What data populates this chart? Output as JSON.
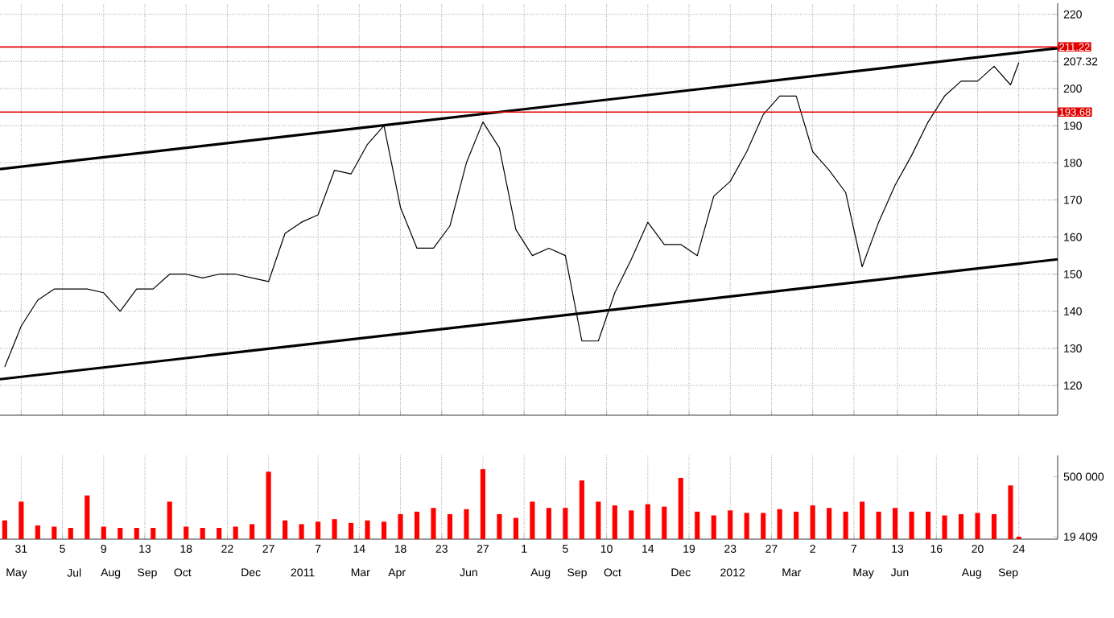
{
  "chart_data": [
    {
      "type": "line",
      "x": [
        "2010-05-17",
        "2010-05-31",
        "2010-06-14",
        "2010-06-28",
        "2010-07-12",
        "2010-07-26",
        "2010-08-09",
        "2010-08-23",
        "2010-09-06",
        "2010-09-20",
        "2010-10-04",
        "2010-10-18",
        "2010-11-01",
        "2010-11-15",
        "2010-11-29",
        "2010-12-13",
        "2010-12-27",
        "2011-01-10",
        "2011-01-24",
        "2011-02-07",
        "2011-02-21",
        "2011-03-07",
        "2011-03-21",
        "2011-04-04",
        "2011-04-18",
        "2011-05-02",
        "2011-05-16",
        "2011-05-30",
        "2011-06-13",
        "2011-06-27",
        "2011-07-11",
        "2011-07-25",
        "2011-08-08",
        "2011-08-22",
        "2011-09-05",
        "2011-09-19",
        "2011-10-03",
        "2011-10-17",
        "2011-10-31",
        "2011-11-14",
        "2011-11-28",
        "2011-12-12",
        "2011-12-26",
        "2012-01-09",
        "2012-01-23",
        "2012-02-06",
        "2012-02-20",
        "2012-03-05",
        "2012-03-19",
        "2012-04-02",
        "2012-04-16",
        "2012-04-30",
        "2012-05-14",
        "2012-05-28",
        "2012-06-11",
        "2012-06-25",
        "2012-07-09",
        "2012-07-23",
        "2012-08-06",
        "2012-08-20",
        "2012-09-03",
        "2012-09-17",
        "2012-09-24"
      ],
      "series": [
        {
          "color": "#000000",
          "values": [
            125,
            136,
            143,
            146,
            146,
            146,
            145,
            140,
            146,
            146,
            150,
            150,
            149,
            150,
            150,
            149,
            148,
            161,
            164,
            166,
            178,
            177,
            185,
            190,
            168,
            157,
            157,
            163,
            180,
            191,
            184,
            162,
            155,
            157,
            155,
            132,
            132,
            145,
            154,
            164,
            158,
            158,
            155,
            171,
            175,
            183,
            193,
            198,
            198,
            183,
            178,
            172,
            152,
            164,
            174,
            182,
            191,
            198,
            202,
            202,
            206,
            201,
            207
          ]
        },
        {
          "color": "#000000",
          "x": [
            "2010-05-13",
            "2012-10-27"
          ],
          "values": [
            178.3,
            210.9
          ]
        },
        {
          "color": "#000000",
          "x": [
            "2010-05-13",
            "2012-10-27"
          ],
          "values": [
            121.7,
            154
          ]
        }
      ],
      "xlim": [
        "2010-05-13",
        "2012-10-27"
      ],
      "xticks": [
        {
          "value": "2010-05-31",
          "label": null
        },
        {
          "value": "2010-07-05",
          "label": null
        },
        {
          "value": "2010-08-09",
          "label": null
        },
        {
          "value": "2010-09-13",
          "label": null
        },
        {
          "value": "2010-10-18",
          "label": null
        },
        {
          "value": "2010-11-22",
          "label": null
        },
        {
          "value": "2010-12-27",
          "label": null
        },
        {
          "value": "2011-02-07",
          "label": null
        },
        {
          "value": "2011-03-14",
          "label": null
        },
        {
          "value": "2011-04-18",
          "label": null
        },
        {
          "value": "2011-05-23",
          "label": null
        },
        {
          "value": "2011-06-27",
          "label": null
        },
        {
          "value": "2011-08-01",
          "label": null
        },
        {
          "value": "2011-09-05",
          "label": null
        },
        {
          "value": "2011-10-10",
          "label": null
        },
        {
          "value": "2011-11-14",
          "label": null
        },
        {
          "value": "2011-12-19",
          "label": null
        },
        {
          "value": "2012-01-23",
          "label": null
        },
        {
          "value": "2012-02-27",
          "label": null
        },
        {
          "value": "2012-04-02",
          "label": null
        },
        {
          "value": "2012-05-07",
          "label": null
        },
        {
          "value": "2012-06-13",
          "label": null
        },
        {
          "value": "2012-07-16",
          "label": null
        },
        {
          "value": "2012-08-20",
          "label": null
        },
        {
          "value": "2012-09-24",
          "label": null
        }
      ],
      "ylim": [
        112,
        223
      ],
      "yticks": [
        120,
        130,
        140,
        150,
        160,
        170,
        180,
        190,
        200,
        {
          "value": 207.32,
          "label": "207.32"
        },
        220
      ],
      "grid": true,
      "tick_labels": "y",
      "ref_lines": [
        {
          "axis": "y",
          "value": 211.22,
          "label": "211.22",
          "color": "#e00000"
        },
        {
          "axis": "y",
          "value": 193.68,
          "label": "193.68",
          "color": "#e00000"
        }
      ]
    },
    {
      "type": "bar",
      "x": [
        "2010-05-17",
        "2010-05-31",
        "2010-06-14",
        "2010-06-28",
        "2010-07-12",
        "2010-07-26",
        "2010-08-09",
        "2010-08-23",
        "2010-09-06",
        "2010-09-20",
        "2010-10-04",
        "2010-10-18",
        "2010-11-01",
        "2010-11-15",
        "2010-11-29",
        "2010-12-13",
        "2010-12-27",
        "2011-01-10",
        "2011-01-24",
        "2011-02-07",
        "2011-02-21",
        "2011-03-07",
        "2011-03-21",
        "2011-04-04",
        "2011-04-18",
        "2011-05-02",
        "2011-05-16",
        "2011-05-30",
        "2011-06-13",
        "2011-06-27",
        "2011-07-11",
        "2011-07-25",
        "2011-08-08",
        "2011-08-22",
        "2011-09-05",
        "2011-09-19",
        "2011-10-03",
        "2011-10-17",
        "2011-10-31",
        "2011-11-14",
        "2011-11-28",
        "2011-12-12",
        "2011-12-26",
        "2012-01-09",
        "2012-01-23",
        "2012-02-06",
        "2012-02-20",
        "2012-03-05",
        "2012-03-19",
        "2012-04-02",
        "2012-04-16",
        "2012-04-30",
        "2012-05-14",
        "2012-05-28",
        "2012-06-11",
        "2012-06-25",
        "2012-07-09",
        "2012-07-23",
        "2012-08-06",
        "2012-08-20",
        "2012-09-03",
        "2012-09-17",
        "2012-09-24"
      ],
      "values": [
        150000,
        300000,
        110000,
        100000,
        90000,
        350000,
        100000,
        90000,
        90000,
        90000,
        300000,
        100000,
        90000,
        90000,
        100000,
        120000,
        540000,
        150000,
        120000,
        140000,
        160000,
        130000,
        150000,
        140000,
        200000,
        220000,
        250000,
        200000,
        240000,
        560000,
        200000,
        170000,
        300000,
        250000,
        250000,
        470000,
        300000,
        270000,
        230000,
        280000,
        260000,
        490000,
        220000,
        190000,
        230000,
        210000,
        210000,
        240000,
        220000,
        270000,
        250000,
        220000,
        300000,
        220000,
        250000,
        220000,
        220000,
        190000,
        200000,
        210000,
        200000,
        430000,
        19409
      ],
      "color": "#ff0000",
      "xlim": [
        "2010-05-13",
        "2012-10-27"
      ],
      "xticks": [
        {
          "value": "2010-05-31",
          "label": "31"
        },
        {
          "value": "2010-07-05",
          "label": "5"
        },
        {
          "value": "2010-08-09",
          "label": "9"
        },
        {
          "value": "2010-09-13",
          "label": "13"
        },
        {
          "value": "2010-10-18",
          "label": "18"
        },
        {
          "value": "2010-11-22",
          "label": "22"
        },
        {
          "value": "2010-12-27",
          "label": "27"
        },
        {
          "value": "2011-02-07",
          "label": "7"
        },
        {
          "value": "2011-03-14",
          "label": "14"
        },
        {
          "value": "2011-04-18",
          "label": "18"
        },
        {
          "value": "2011-05-23",
          "label": "23"
        },
        {
          "value": "2011-06-27",
          "label": "27"
        },
        {
          "value": "2011-08-01",
          "label": "1"
        },
        {
          "value": "2011-09-05",
          "label": "5"
        },
        {
          "value": "2011-10-10",
          "label": "10"
        },
        {
          "value": "2011-11-14",
          "label": "14"
        },
        {
          "value": "2011-12-19",
          "label": "19"
        },
        {
          "value": "2012-01-23",
          "label": "23"
        },
        {
          "value": "2012-02-27",
          "label": "27"
        },
        {
          "value": "2012-04-02",
          "label": "2"
        },
        {
          "value": "2012-05-07",
          "label": "7"
        },
        {
          "value": "2012-06-13",
          "label": "13"
        },
        {
          "value": "2012-07-16",
          "label": "16"
        },
        {
          "value": "2012-08-20",
          "label": "20"
        },
        {
          "value": "2012-09-24",
          "label": "24"
        }
      ],
      "x2lim": [
        "2010-05-13",
        "2012-10-27"
      ],
      "x2ticks": [
        {
          "value": "2010-05-27",
          "label": "May"
        },
        {
          "value": "2010-07-15",
          "label": "Jul"
        },
        {
          "value": "2010-08-15",
          "label": "Aug"
        },
        {
          "value": "2010-09-15",
          "label": "Sep"
        },
        {
          "value": "2010-10-15",
          "label": "Oct"
        },
        {
          "value": "2010-12-12",
          "label": "Dec"
        },
        {
          "value": "2011-01-25",
          "label": "2011"
        },
        {
          "value": "2011-03-15",
          "label": "Mar"
        },
        {
          "value": "2011-04-15",
          "label": "Apr"
        },
        {
          "value": "2011-06-15",
          "label": "Jun"
        },
        {
          "value": "2011-08-15",
          "label": "Aug"
        },
        {
          "value": "2011-09-15",
          "label": "Sep"
        },
        {
          "value": "2011-10-15",
          "label": "Oct"
        },
        {
          "value": "2011-12-12",
          "label": "Dec"
        },
        {
          "value": "2012-01-25",
          "label": "2012"
        },
        {
          "value": "2012-03-15",
          "label": "Mar"
        },
        {
          "value": "2012-05-15",
          "label": "May"
        },
        {
          "value": "2012-06-15",
          "label": "Jun"
        },
        {
          "value": "2012-08-15",
          "label": "Aug"
        },
        {
          "value": "2012-09-15",
          "label": "Sep"
        }
      ],
      "ylim": [
        0,
        670000
      ],
      "yticks": [
        {
          "value": 19409,
          "label": "19 409"
        },
        {
          "value": 500000,
          "label": "500 000"
        }
      ],
      "grid": "x"
    }
  ]
}
